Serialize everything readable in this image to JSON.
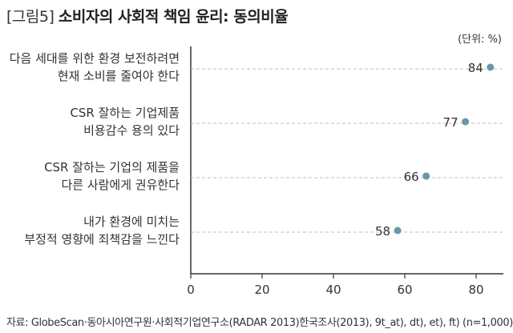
{
  "chart_data": {
    "type": "scatter",
    "title_tag": "[그림5]",
    "title": "소비자의 사회적 책임 윤리: 동의비율",
    "unit": "(단위: %)",
    "source": "자료: GlobeScan·동아시아연구원·사회적기업연구소(RADAR 2013)한국조사(2013), 9t_at), dt), et), ft) (n=1,000)",
    "xlim": [
      0,
      80
    ],
    "xticks": [
      "0",
      "20",
      "40",
      "60",
      "80"
    ],
    "grid": "horizontal dashed",
    "colors": {
      "point": "#6a97ad",
      "grid": "#bfbfbf",
      "axis": "#333333"
    },
    "categories": [
      {
        "lines": [
          "다음 세대를 위한 환경 보전하려면",
          "현재 소비를 줄여야 한다"
        ],
        "value": 84
      },
      {
        "lines": [
          "CSR 잘하는 기업제품",
          "비용감수 용의 있다"
        ],
        "value": 77
      },
      {
        "lines": [
          "CSR 잘하는 기업의 제품을",
          "다른 사람에게 권유한다"
        ],
        "value": 66
      },
      {
        "lines": [
          "내가 환경에 미치는",
          "부정적 영향에 죄책감을 느낀다"
        ],
        "value": 58
      }
    ]
  }
}
